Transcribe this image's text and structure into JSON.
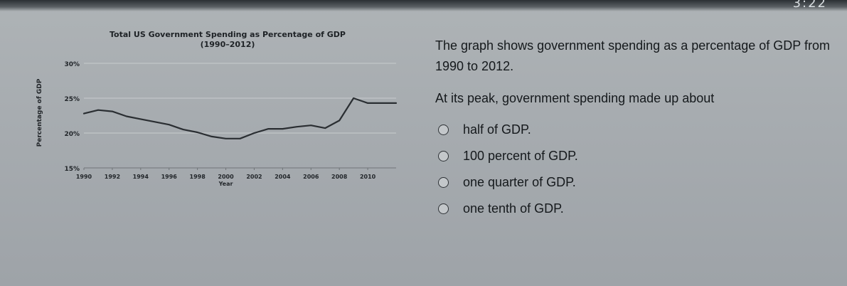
{
  "status_bar": {
    "clock": "3:22"
  },
  "question": {
    "intro": "The graph shows government spending as a percentage of GDP from 1990 to 2012.",
    "stem": "At its peak, government spending made up about",
    "options": [
      {
        "label": "half of GDP."
      },
      {
        "label": "100 percent of GDP."
      },
      {
        "label": "one quarter of GDP."
      },
      {
        "label": "one tenth of GDP."
      }
    ]
  },
  "chart_data": {
    "type": "line",
    "title": "Total US Government Spending as Percentage of GDP",
    "subtitle": "(1990–2012)",
    "xlabel": "Year",
    "ylabel": "Percentage of GDP",
    "xlim": [
      1990,
      2012
    ],
    "ylim": [
      15,
      30
    ],
    "x_ticks": [
      "1990",
      "1992",
      "1994",
      "1996",
      "1998",
      "2000",
      "2002",
      "2004",
      "2006",
      "2008",
      "2010"
    ],
    "y_ticks": [
      "15%",
      "20%",
      "25%",
      "30%"
    ],
    "grid": "horizontal",
    "line_color": "#2a2e32",
    "series": [
      {
        "x": [
          1990,
          1991,
          1992,
          1993,
          1994,
          1995,
          1996,
          1997,
          1998,
          1999,
          2000,
          2001,
          2002,
          2003,
          2004,
          2005,
          2006,
          2007,
          2008,
          2009,
          2010,
          2011,
          2012
        ],
        "y": [
          22.8,
          23.3,
          23.1,
          22.4,
          22.0,
          21.6,
          21.2,
          20.5,
          20.1,
          19.5,
          19.2,
          19.2,
          20.0,
          20.6,
          20.6,
          20.9,
          21.1,
          20.7,
          21.8,
          25.0,
          24.3,
          24.3,
          24.3
        ]
      }
    ]
  }
}
